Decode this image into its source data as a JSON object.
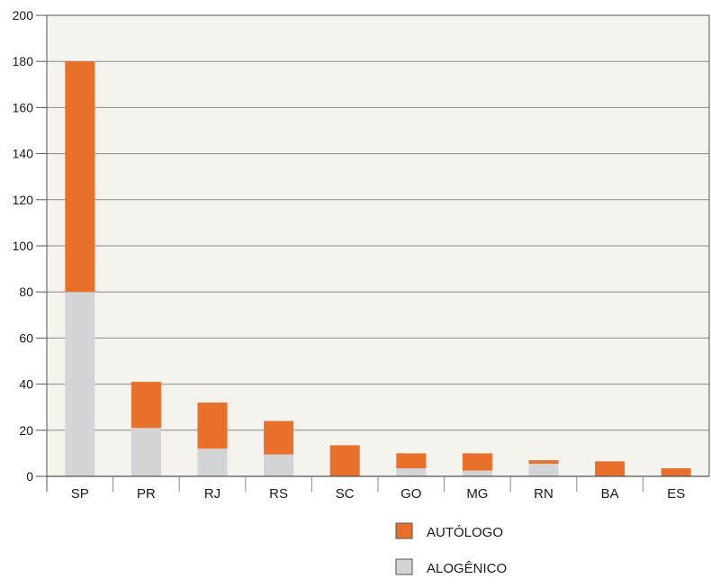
{
  "chart_data": {
    "type": "bar",
    "stacked": true,
    "title": "",
    "xlabel": "",
    "ylabel": "",
    "ylim": [
      0,
      200
    ],
    "yticks": [
      0,
      20,
      40,
      60,
      80,
      100,
      120,
      140,
      160,
      180,
      200
    ],
    "grid": true,
    "legend_position": "bottom-right",
    "categories": [
      "SP",
      "PR",
      "RJ",
      "RS",
      "SC",
      "GO",
      "MG",
      "RN",
      "BA",
      "ES"
    ],
    "series": [
      {
        "name": "ALOGÊNICO",
        "color": "#d3d4d6",
        "values": [
          80,
          21,
          12,
          9.5,
          0,
          3.5,
          2.5,
          5.5,
          0,
          0
        ]
      },
      {
        "name": "AUTÓLOGO",
        "color": "#e8702a",
        "values": [
          100,
          20,
          20,
          14.5,
          13.5,
          6.5,
          7.5,
          1.5,
          6.5,
          3.5
        ]
      }
    ],
    "legend_order": [
      "AUTÓLOGO",
      "ALOGÊNICO"
    ],
    "plot_background": "#f4f3ee",
    "grid_color": "#8a8a8a"
  }
}
